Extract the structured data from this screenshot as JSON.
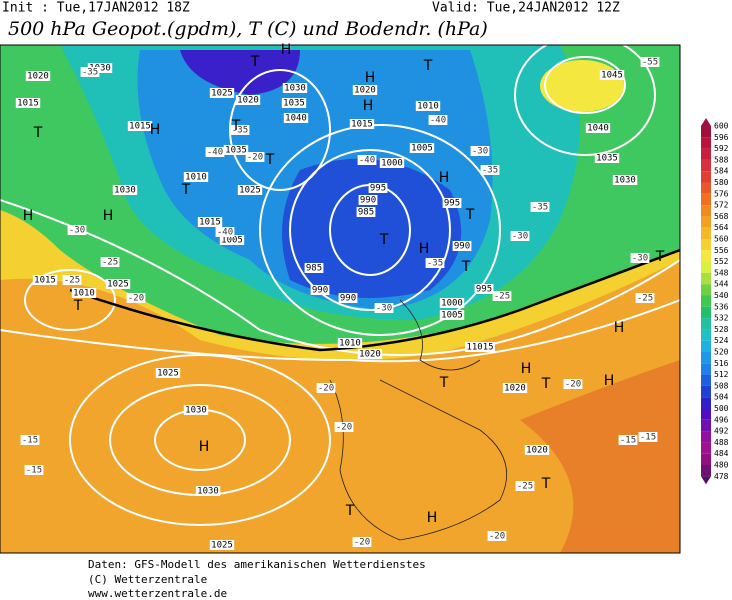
{
  "header": {
    "init": "Init : Tue,17JAN2012 18Z",
    "valid": "Valid: Tue,24JAN2012 12Z",
    "title": "500 hPa Geopot.(gpdm), T (C) und Bodendr. (hPa)"
  },
  "colorbar": {
    "ticks": [
      "600",
      "596",
      "592",
      "588",
      "584",
      "580",
      "576",
      "572",
      "568",
      "564",
      "560",
      "556",
      "552",
      "548",
      "544",
      "540",
      "536",
      "532",
      "528",
      "524",
      "520",
      "516",
      "512",
      "508",
      "504",
      "500",
      "496",
      "492",
      "488",
      "484",
      "480",
      "478"
    ],
    "colors": [
      "#a0103c",
      "#b8163c",
      "#c8203c",
      "#d8303c",
      "#e04030",
      "#e85828",
      "#f07020",
      "#f08a20",
      "#f4a020",
      "#f4b828",
      "#f4d030",
      "#f4e840",
      "#d8f040",
      "#a8e040",
      "#70d040",
      "#40c850",
      "#20c070",
      "#20c0a0",
      "#20c0c8",
      "#20b0e0",
      "#2098e8",
      "#2080e8",
      "#2060e0",
      "#2040d0",
      "#3020c8",
      "#5010c0",
      "#7010b0",
      "#9010a0",
      "#a01090",
      "#901080",
      "#701070",
      "#501060"
    ]
  },
  "map": {
    "isobar_labels": [
      "1020",
      "1030",
      "1015",
      "1025",
      "1020",
      "1030",
      "1035",
      "1040",
      "1035",
      "1015",
      "1010",
      "1030",
      "1025",
      "1015",
      "1005",
      "1020",
      "1015",
      "1010",
      "1005",
      "1000",
      "995",
      "990",
      "985",
      "985",
      "990",
      "990",
      "995",
      "990",
      "995",
      "1000",
      "1005",
      "1010",
      "11015",
      "1020",
      "1025",
      "1030",
      "1030",
      "1025",
      "1020",
      "1020",
      "1015",
      "1010",
      "1025",
      "1045",
      "1040",
      "1035",
      "1030"
    ],
    "temperature_labels": [
      "-35",
      "-30",
      "-25",
      "-25",
      "-20",
      "-20",
      "-20",
      "-20",
      "-15",
      "-15",
      "-40",
      "-30",
      "-35",
      "-35",
      "-30",
      "-30",
      "-25",
      "-25",
      "-25",
      "-20",
      "-15",
      "-15",
      "-20",
      "-40",
      "-40",
      "-35",
      "-20",
      "-40",
      "-30",
      "-35",
      "-55"
    ],
    "centers": [
      "H",
      "T",
      "T",
      "T",
      "H",
      "T",
      "T",
      "H",
      "H",
      "H",
      "T",
      "H",
      "T",
      "H",
      "T",
      "T",
      "H",
      "T",
      "H",
      "H",
      "T",
      "H",
      "T",
      "H",
      "T",
      "T",
      "T",
      "H"
    ]
  },
  "footer": {
    "line1": "Daten: GFS-Modell des amerikanischen Wetterdienstes",
    "line2": "(C) Wetterzentrale",
    "line3": "www.wetterzentrale.de"
  }
}
